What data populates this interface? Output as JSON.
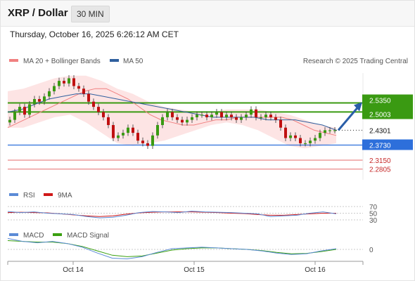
{
  "header": {
    "symbol": "XRP / Dollar",
    "timeframe": "30 MIN",
    "datetime": "Thursday, October 16, 2025 6:26:12 AM CET"
  },
  "legend": {
    "main": [
      {
        "label": "MA 20 + Bollinger Bands",
        "color": "#f08080"
      },
      {
        "label": "MA 50",
        "color": "#2f5f9e"
      }
    ],
    "rsi": [
      {
        "label": "RSI",
        "color": "#5b8bd6"
      },
      {
        "label": "9MA",
        "color": "#d01818"
      }
    ],
    "macd": [
      {
        "label": "MACD",
        "color": "#5b8bd6"
      },
      {
        "label": "MACD Signal",
        "color": "#3aa010"
      }
    ],
    "credit": "Research © 2025 Trading Central"
  },
  "colors": {
    "resistance": "#3a9a12",
    "current": "#222222",
    "support_strong": "#2d6fdb",
    "support_weak": "#e56b6b",
    "arrow": "#2a5ea8",
    "candle_up": "#3a9a12",
    "candle_down": "#c01010",
    "band_fill": "#fde4e4"
  },
  "chart_data": {
    "type": "candlestick",
    "x_ticks": [
      "Oct 14",
      "Oct 15",
      "Oct 16"
    ],
    "price_levels": [
      {
        "value": 2.535,
        "label": "2.5350",
        "kind": "resistance"
      },
      {
        "value": 2.5003,
        "label": "2.5003",
        "kind": "resistance"
      },
      {
        "value": 2.4301,
        "label": "2.4301",
        "kind": "current"
      },
      {
        "value": 2.373,
        "label": "2.3730",
        "kind": "support"
      },
      {
        "value": 2.315,
        "label": "2.3150",
        "kind": "support_weak"
      },
      {
        "value": 2.2805,
        "label": "2.2805",
        "kind": "support_weak"
      }
    ],
    "close": [
      2.47,
      2.5,
      2.52,
      2.49,
      2.53,
      2.55,
      2.54,
      2.56,
      2.58,
      2.6,
      2.62,
      2.61,
      2.63,
      2.6,
      2.59,
      2.57,
      2.54,
      2.52,
      2.5,
      2.48,
      2.45,
      2.4,
      2.41,
      2.42,
      2.44,
      2.42,
      2.39,
      2.38,
      2.37,
      2.41,
      2.45,
      2.48,
      2.5,
      2.48,
      2.47,
      2.46,
      2.47,
      2.48,
      2.49,
      2.49,
      2.48,
      2.49,
      2.5,
      2.48,
      2.49,
      2.48,
      2.47,
      2.48,
      2.49,
      2.51,
      2.48,
      2.48,
      2.49,
      2.48,
      2.47,
      2.44,
      2.4,
      2.41,
      2.4,
      2.38,
      2.38,
      2.39,
      2.4,
      2.42,
      2.43,
      2.43,
      2.43
    ],
    "ma20": [
      2.44,
      2.46,
      2.48,
      2.5,
      2.52,
      2.54,
      2.56,
      2.58,
      2.59,
      2.59,
      2.57,
      2.55,
      2.52,
      2.49,
      2.47,
      2.46,
      2.45,
      2.45,
      2.46,
      2.47,
      2.47,
      2.48,
      2.48,
      2.48,
      2.48,
      2.48,
      2.47,
      2.45,
      2.43,
      2.42,
      2.41
    ],
    "ma50": [
      2.5,
      2.51,
      2.53,
      2.55,
      2.56,
      2.57,
      2.57,
      2.56,
      2.55,
      2.54,
      2.53,
      2.52,
      2.51,
      2.5,
      2.49,
      2.48,
      2.48,
      2.48,
      2.48,
      2.47,
      2.47,
      2.47,
      2.46,
      2.45,
      2.43
    ],
    "bollinger_upper": [
      2.58,
      2.59,
      2.61,
      2.63,
      2.64,
      2.64,
      2.62,
      2.59,
      2.57,
      2.54,
      2.52,
      2.51,
      2.5,
      2.5,
      2.51,
      2.51,
      2.51,
      2.5,
      2.49,
      2.47,
      2.45,
      2.44
    ],
    "bollinger_lower": [
      2.44,
      2.44,
      2.46,
      2.48,
      2.49,
      2.46,
      2.42,
      2.38,
      2.37,
      2.38,
      2.39,
      2.41,
      2.43,
      2.45,
      2.46,
      2.45,
      2.43,
      2.4,
      2.37,
      2.36,
      2.37,
      2.38
    ],
    "rsi": {
      "ticks": [
        "70",
        "50",
        "30"
      ],
      "rsi": [
        55,
        52,
        54,
        50,
        48,
        46,
        40,
        36,
        38,
        44,
        52,
        55,
        54,
        52,
        56,
        54,
        53,
        52,
        50,
        48,
        40,
        42,
        44,
        50,
        54,
        48
      ],
      "ma9": [
        52,
        53,
        52,
        51,
        48,
        45,
        42,
        40,
        42,
        47,
        51,
        53,
        54,
        54,
        54,
        53,
        52,
        50,
        49,
        46,
        44,
        44,
        46,
        48,
        50,
        50
      ]
    },
    "macd": {
      "ticks": [
        "0"
      ],
      "macd": [
        0.03,
        0.022,
        0.018,
        0.022,
        0.016,
        0.006,
        -0.01,
        -0.024,
        -0.026,
        -0.02,
        -0.008,
        0.002,
        0.004,
        0.006,
        0.004,
        0.002,
        0.0,
        -0.004,
        -0.01,
        -0.014,
        -0.012,
        -0.004,
        0.002
      ],
      "signal": [
        0.024,
        0.022,
        0.02,
        0.02,
        0.016,
        0.008,
        -0.004,
        -0.016,
        -0.02,
        -0.018,
        -0.01,
        -0.002,
        0.002,
        0.004,
        0.004,
        0.002,
        0.0,
        -0.003,
        -0.008,
        -0.012,
        -0.011,
        -0.006,
        0.0
      ]
    }
  }
}
